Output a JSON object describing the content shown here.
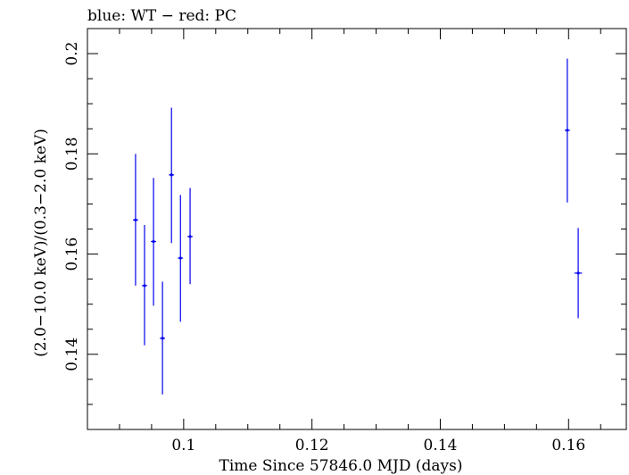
{
  "chart_data": {
    "type": "scatter",
    "title": "blue: WT − red: PC",
    "xlabel": "Time Since 57846.0 MJD (days)",
    "ylabel": "(2.0−10.0 keV)/(0.3−2.0 keV)",
    "xlim": [
      0.085,
      0.169
    ],
    "ylim": [
      0.125,
      0.205
    ],
    "x_ticks": [
      {
        "value": 0.1,
        "label": "0.1"
      },
      {
        "value": 0.12,
        "label": "0.12"
      },
      {
        "value": 0.14,
        "label": "0.14"
      },
      {
        "value": 0.16,
        "label": "0.16"
      }
    ],
    "x_minor_step": 0.005,
    "y_ticks": [
      {
        "value": 0.14,
        "label": "0.14"
      },
      {
        "value": 0.16,
        "label": "0.16"
      },
      {
        "value": 0.18,
        "label": "0.18"
      },
      {
        "value": 0.2,
        "label": "0.2"
      }
    ],
    "y_minor_step": 0.005,
    "grid": false,
    "series": [
      {
        "color": "#0000ee",
        "points": [
          {
            "x": 0.0925,
            "xerr": 0.0004,
            "y": 0.1668,
            "ylo": 0.1537,
            "yhi": 0.18
          },
          {
            "x": 0.0939,
            "xerr": 0.0004,
            "y": 0.1537,
            "ylo": 0.1418,
            "yhi": 0.1658
          },
          {
            "x": 0.0953,
            "xerr": 0.0004,
            "y": 0.1625,
            "ylo": 0.1497,
            "yhi": 0.1752
          },
          {
            "x": 0.0967,
            "xerr": 0.0004,
            "y": 0.1432,
            "ylo": 0.132,
            "yhi": 0.1545
          },
          {
            "x": 0.0981,
            "xerr": 0.0004,
            "y": 0.1758,
            "ylo": 0.1622,
            "yhi": 0.1892
          },
          {
            "x": 0.0995,
            "xerr": 0.0004,
            "y": 0.1592,
            "ylo": 0.1465,
            "yhi": 0.1718
          },
          {
            "x": 0.101,
            "xerr": 0.0004,
            "y": 0.1635,
            "ylo": 0.154,
            "yhi": 0.1732
          },
          {
            "x": 0.1598,
            "xerr": 0.0004,
            "y": 0.1847,
            "ylo": 0.1703,
            "yhi": 0.199
          },
          {
            "x": 0.1615,
            "xerr": 0.0006,
            "y": 0.1562,
            "ylo": 0.1472,
            "yhi": 0.1652
          }
        ]
      }
    ]
  }
}
